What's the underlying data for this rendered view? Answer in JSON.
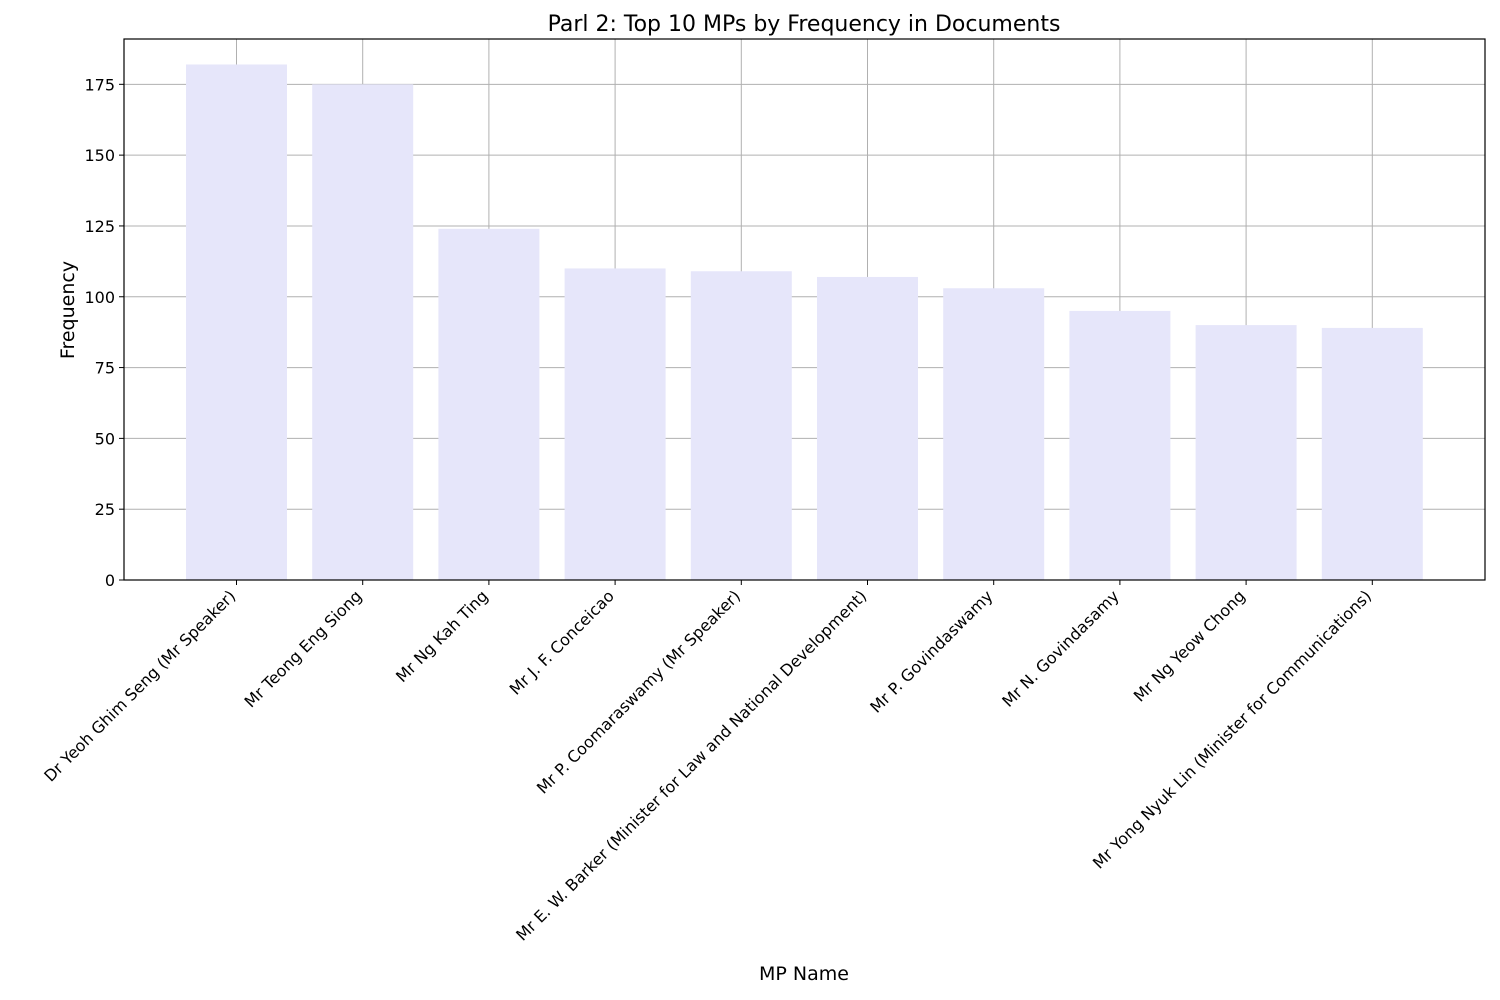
{
  "chart_data": {
    "type": "bar",
    "title": "Parl 2: Top 10 MPs by Frequency in Documents",
    "xlabel": "MP Name",
    "ylabel": "Frequency",
    "categories": [
      "Dr Yeoh Ghim Seng (Mr Speaker)",
      "Mr Teong Eng Siong",
      "Mr Ng Kah Ting",
      "Mr J. F. Conceicao",
      "Mr P. Coomaraswamy (Mr Speaker)",
      "Mr E. W. Barker (Minister for Law and National Development)",
      "Mr P. Govindaswamy",
      "Mr N. Govindasamy",
      "Mr Ng Yeow Chong",
      "Mr Yong Nyuk Lin (Minister for Communications)"
    ],
    "values": [
      182,
      175,
      124,
      110,
      109,
      107,
      103,
      95,
      90,
      89
    ],
    "ylim": [
      0,
      191
    ],
    "yticks": [
      0,
      25,
      50,
      75,
      100,
      125,
      150,
      175
    ],
    "ytick_labels": [
      "0",
      "25",
      "50",
      "75",
      "100",
      "125",
      "150",
      "175"
    ],
    "grid": true,
    "legend": "none",
    "bar_color": "#e6e6fa"
  }
}
